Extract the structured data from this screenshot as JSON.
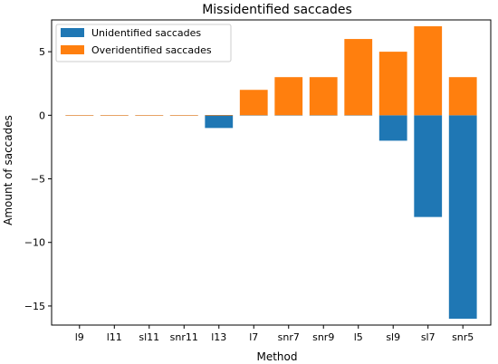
{
  "chart_data": {
    "type": "bar",
    "title": "Missidentified saccades",
    "xlabel": "Method",
    "ylabel": "Amount of saccades",
    "categories": [
      "l9",
      "l11",
      "sl11",
      "snr11",
      "l13",
      "l7",
      "snr7",
      "snr9",
      "l5",
      "sl9",
      "sl7",
      "snr5"
    ],
    "series": [
      {
        "name": "Unidentified saccades",
        "color": "#1f77b4",
        "values": [
          0,
          0,
          0,
          0,
          -1,
          0,
          0,
          0,
          0,
          -2,
          -8,
          -16
        ]
      },
      {
        "name": "Overidentified saccades",
        "color": "#ff7f0e",
        "values": [
          0,
          0,
          0,
          0,
          0,
          2,
          3,
          3,
          6,
          5,
          7,
          3
        ]
      }
    ],
    "ylim": [
      -16.5,
      7.5
    ],
    "yticks": [
      -15,
      -10,
      -5,
      0,
      5
    ],
    "ytick_labels": [
      "−15",
      "−10",
      "−5",
      "0",
      "5"
    ],
    "legend_position": "top-left",
    "grid": false
  }
}
